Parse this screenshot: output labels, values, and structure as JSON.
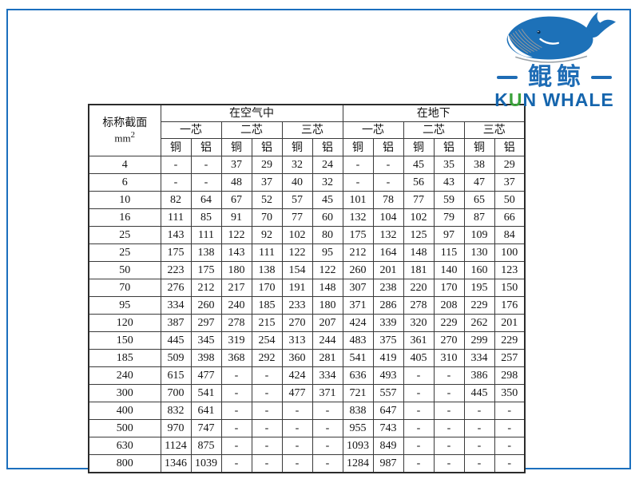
{
  "frame": {
    "border_color": "#1b6fbe"
  },
  "logo": {
    "name_cn": "鲲鲸",
    "name_en": "KUN WHALE",
    "en_parts": [
      "K",
      "U",
      "N WHALE"
    ],
    "colors": {
      "blue": "#1d71b8",
      "green": "#3ca23c"
    }
  },
  "table": {
    "corner": {
      "line1": "标称截面",
      "unit": "mm",
      "unit_sup": "2"
    },
    "group_headers": [
      "在空气中",
      "在地下"
    ],
    "core_headers": [
      "一芯",
      "二芯",
      "三芯",
      "一芯",
      "二芯",
      "三芯"
    ],
    "material_headers": [
      "铜",
      "铝",
      "铜",
      "铝",
      "铜",
      "铝",
      "铜",
      "铝",
      "铜",
      "铝",
      "铜",
      "铝"
    ],
    "rows": [
      {
        "size": "4",
        "values": [
          "-",
          "-",
          "37",
          "29",
          "32",
          "24",
          "-",
          "-",
          "45",
          "35",
          "38",
          "29"
        ]
      },
      {
        "size": "6",
        "values": [
          "-",
          "-",
          "48",
          "37",
          "40",
          "32",
          "-",
          "-",
          "56",
          "43",
          "47",
          "37"
        ]
      },
      {
        "size": "10",
        "values": [
          "82",
          "64",
          "67",
          "52",
          "57",
          "45",
          "101",
          "78",
          "77",
          "59",
          "65",
          "50"
        ]
      },
      {
        "size": "16",
        "values": [
          "111",
          "85",
          "91",
          "70",
          "77",
          "60",
          "132",
          "104",
          "102",
          "79",
          "87",
          "66"
        ]
      },
      {
        "size": "25",
        "values": [
          "143",
          "111",
          "122",
          "92",
          "102",
          "80",
          "175",
          "132",
          "125",
          "97",
          "109",
          "84"
        ]
      },
      {
        "size": "25",
        "values": [
          "175",
          "138",
          "143",
          "111",
          "122",
          "95",
          "212",
          "164",
          "148",
          "115",
          "130",
          "100"
        ]
      },
      {
        "size": "50",
        "values": [
          "223",
          "175",
          "180",
          "138",
          "154",
          "122",
          "260",
          "201",
          "181",
          "140",
          "160",
          "123"
        ]
      },
      {
        "size": "70",
        "values": [
          "276",
          "212",
          "217",
          "170",
          "191",
          "148",
          "307",
          "238",
          "220",
          "170",
          "195",
          "150"
        ]
      },
      {
        "size": "95",
        "values": [
          "334",
          "260",
          "240",
          "185",
          "233",
          "180",
          "371",
          "286",
          "278",
          "208",
          "229",
          "176"
        ]
      },
      {
        "size": "120",
        "values": [
          "387",
          "297",
          "278",
          "215",
          "270",
          "207",
          "424",
          "339",
          "320",
          "229",
          "262",
          "201"
        ]
      },
      {
        "size": "150",
        "values": [
          "445",
          "345",
          "319",
          "254",
          "313",
          "244",
          "483",
          "375",
          "361",
          "270",
          "299",
          "229"
        ]
      },
      {
        "size": "185",
        "values": [
          "509",
          "398",
          "368",
          "292",
          "360",
          "281",
          "541",
          "419",
          "405",
          "310",
          "334",
          "257"
        ]
      },
      {
        "size": "240",
        "values": [
          "615",
          "477",
          "-",
          "-",
          "424",
          "334",
          "636",
          "493",
          "-",
          "-",
          "386",
          "298"
        ]
      },
      {
        "size": "300",
        "values": [
          "700",
          "541",
          "-",
          "-",
          "477",
          "371",
          "721",
          "557",
          "-",
          "-",
          "445",
          "350"
        ]
      },
      {
        "size": "400",
        "values": [
          "832",
          "641",
          "-",
          "-",
          "-",
          "-",
          "838",
          "647",
          "-",
          "-",
          "-",
          "-"
        ]
      },
      {
        "size": "500",
        "values": [
          "970",
          "747",
          "-",
          "-",
          "-",
          "-",
          "955",
          "743",
          "-",
          "-",
          "-",
          "-"
        ]
      },
      {
        "size": "630",
        "values": [
          "1124",
          "875",
          "-",
          "-",
          "-",
          "-",
          "1093",
          "849",
          "-",
          "-",
          "-",
          "-"
        ]
      },
      {
        "size": "800",
        "values": [
          "1346",
          "1039",
          "-",
          "-",
          "-",
          "-",
          "1284",
          "987",
          "-",
          "-",
          "-",
          "-"
        ]
      }
    ]
  }
}
